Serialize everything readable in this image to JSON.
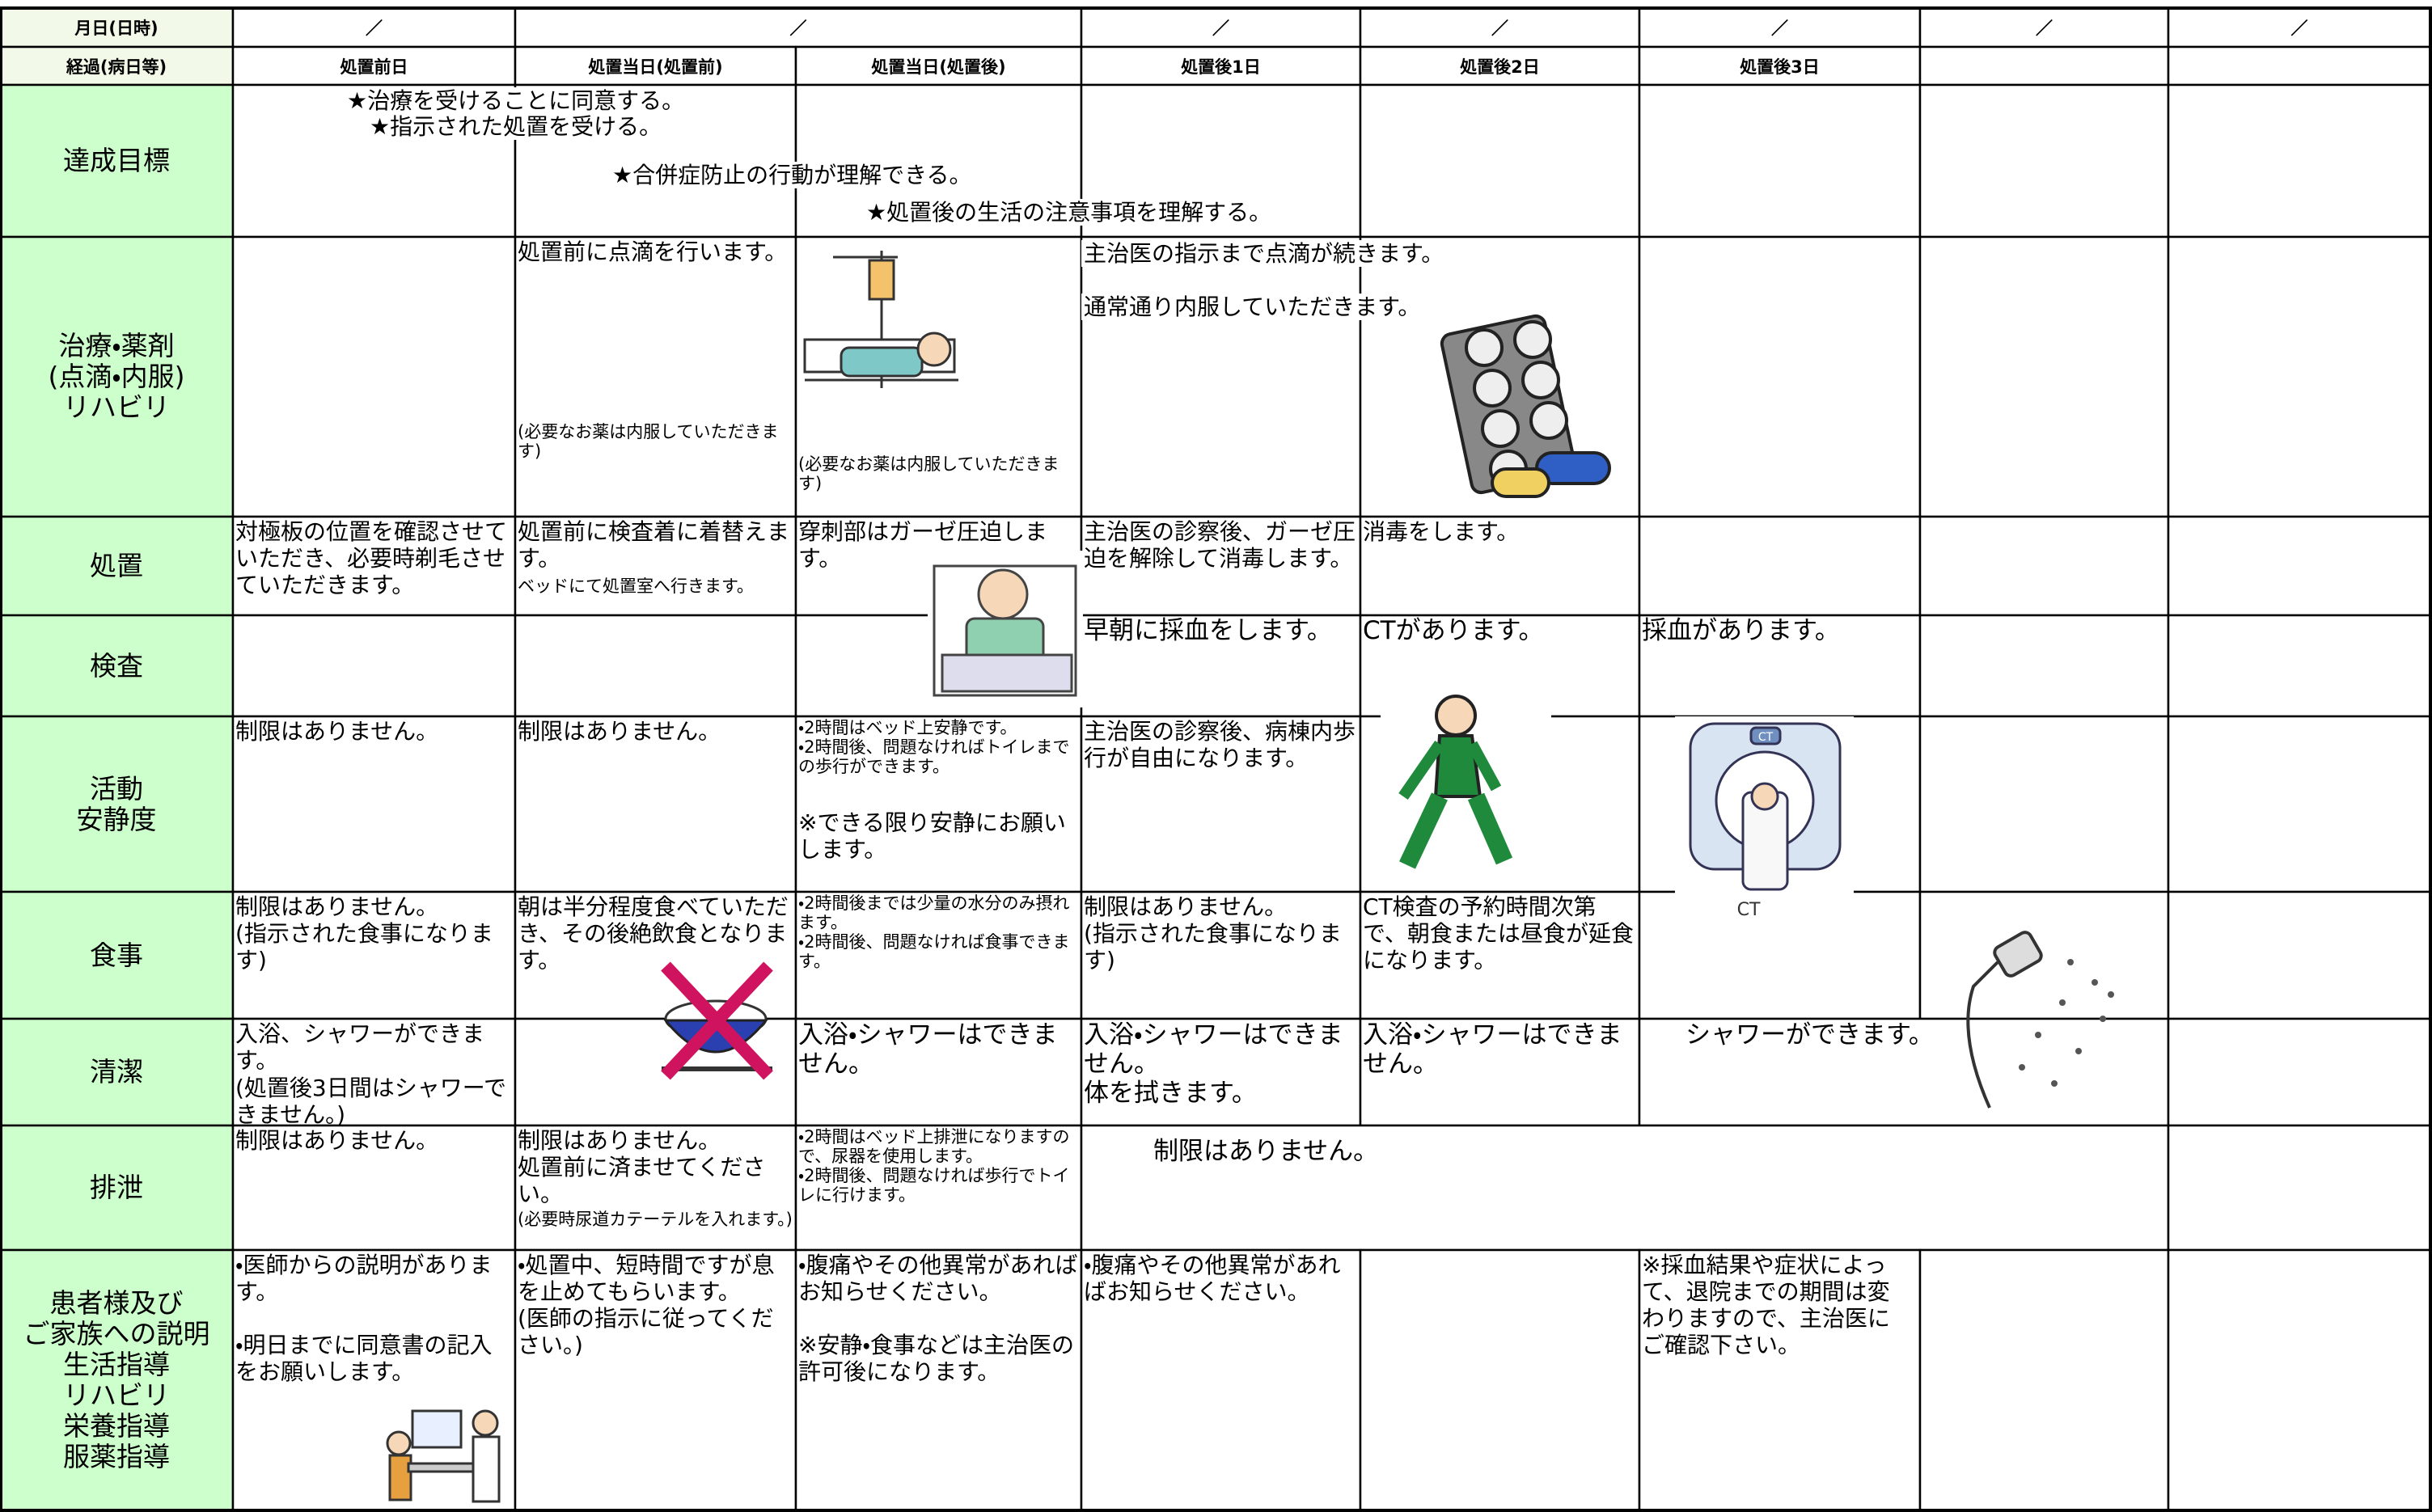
{
  "header": {
    "date_label": "月日(日時)",
    "dates": [
      "／",
      "／",
      "／",
      "／",
      "／",
      "／",
      "／"
    ],
    "course_label": "経過(病日等)",
    "days": [
      "処置前日",
      "処置当日(処置前)",
      "処置当日(処置後)",
      "処置後1日",
      "処置後2日",
      "処置後3日"
    ]
  },
  "rows": [
    {
      "label": "達成目標",
      "entries": [
        "★治療を受けることに同意する。",
        "★指示された処置を受ける。",
        "★合併症防止の行動が理解できる。",
        "★処置後の生活の注意事項を理解する。"
      ]
    },
    {
      "label": "治療・薬剤\n(点滴・内服)\nリハビリ",
      "entries": [
        "処置前に点滴を行います。",
        "(必要なお薬は内服していただきます)",
        "(必要なお薬は内服していただきます)",
        "主治医の指示まで点滴が続きます。",
        "通常通り内服していただきます。"
      ]
    },
    {
      "label": "処置",
      "entries": [
        "対極板の位置を確認させていただき、必要時剃毛させていただきます。",
        "処置前に検査着に着替えます。",
        "ベッドにて処置室へ行きます。",
        "穿刺部はガーゼ圧迫します。",
        "主治医の診察後、ガーゼ圧迫を解除して消毒します。",
        "消毒をします。"
      ]
    },
    {
      "label": "検査",
      "entries": [
        "早朝に採血をします。",
        "CTがあります。",
        "採血があります。"
      ]
    },
    {
      "label": "活動\n安静度",
      "entries": [
        "制限はありません。",
        "制限はありません。",
        "・2時間はベッド上安静です。\n・2時間後、問題なければトイレまでの歩行ができます。",
        "※できる限り安静にお願いします。",
        "主治医の診察後、病棟内歩行が自由になります。"
      ]
    },
    {
      "label": "食事",
      "entries": [
        "制限はありません。\n(指示された食事になります)",
        "朝は半分程度食べていただき、その後絶飲食となります。",
        "・2時間後までは少量の水分のみ摂れます。\n・2時間後、問題なければ食事できます。",
        "制限はありません。\n(指示された食事になります)",
        "CT検査の予約時間次第で、朝食または昼食が延食になります。"
      ]
    },
    {
      "label": "清潔",
      "entries": [
        "入浴、シャワーができます。",
        "(処置後3日間はシャワーできません。)",
        "入浴・シャワーはできません。",
        "入浴・シャワーはできません。\n体を拭きます。",
        "入浴・シャワーはできません。",
        "シャワーができます。"
      ]
    },
    {
      "label": "排泄",
      "entries": [
        "制限はありません。",
        "制限はありません。\n処置前に済ませてください。",
        "(必要時尿道カテーテルを入れます。)",
        "・2時間はベッド上排泄になりますので、尿器を使用します。\n・2時間後、問題なければ歩行でトイレに行けます。",
        "制限はありません。"
      ]
    },
    {
      "label": "患者様及び\nご家族への説明\n生活指導\nリハビリ\n栄養指導\n服薬指導",
      "entries": [
        "・医師からの説明があります。\n\n・明日までに同意書の記入をお願いします。",
        "・処置中、短時間ですが息を止めてもらいます。\n(医師の指示に従ってください。)",
        "・腹痛やその他異常があればお知らせください。\n\n※安静・食事などは主治医の許可後になります。",
        "・腹痛やその他異常があればお知らせください。",
        "※採血結果や症状によって、退院までの期間は変わりますので、主治医にご確認下さい。"
      ]
    }
  ],
  "illustration_labels": [
    "CT",
    "CT"
  ]
}
